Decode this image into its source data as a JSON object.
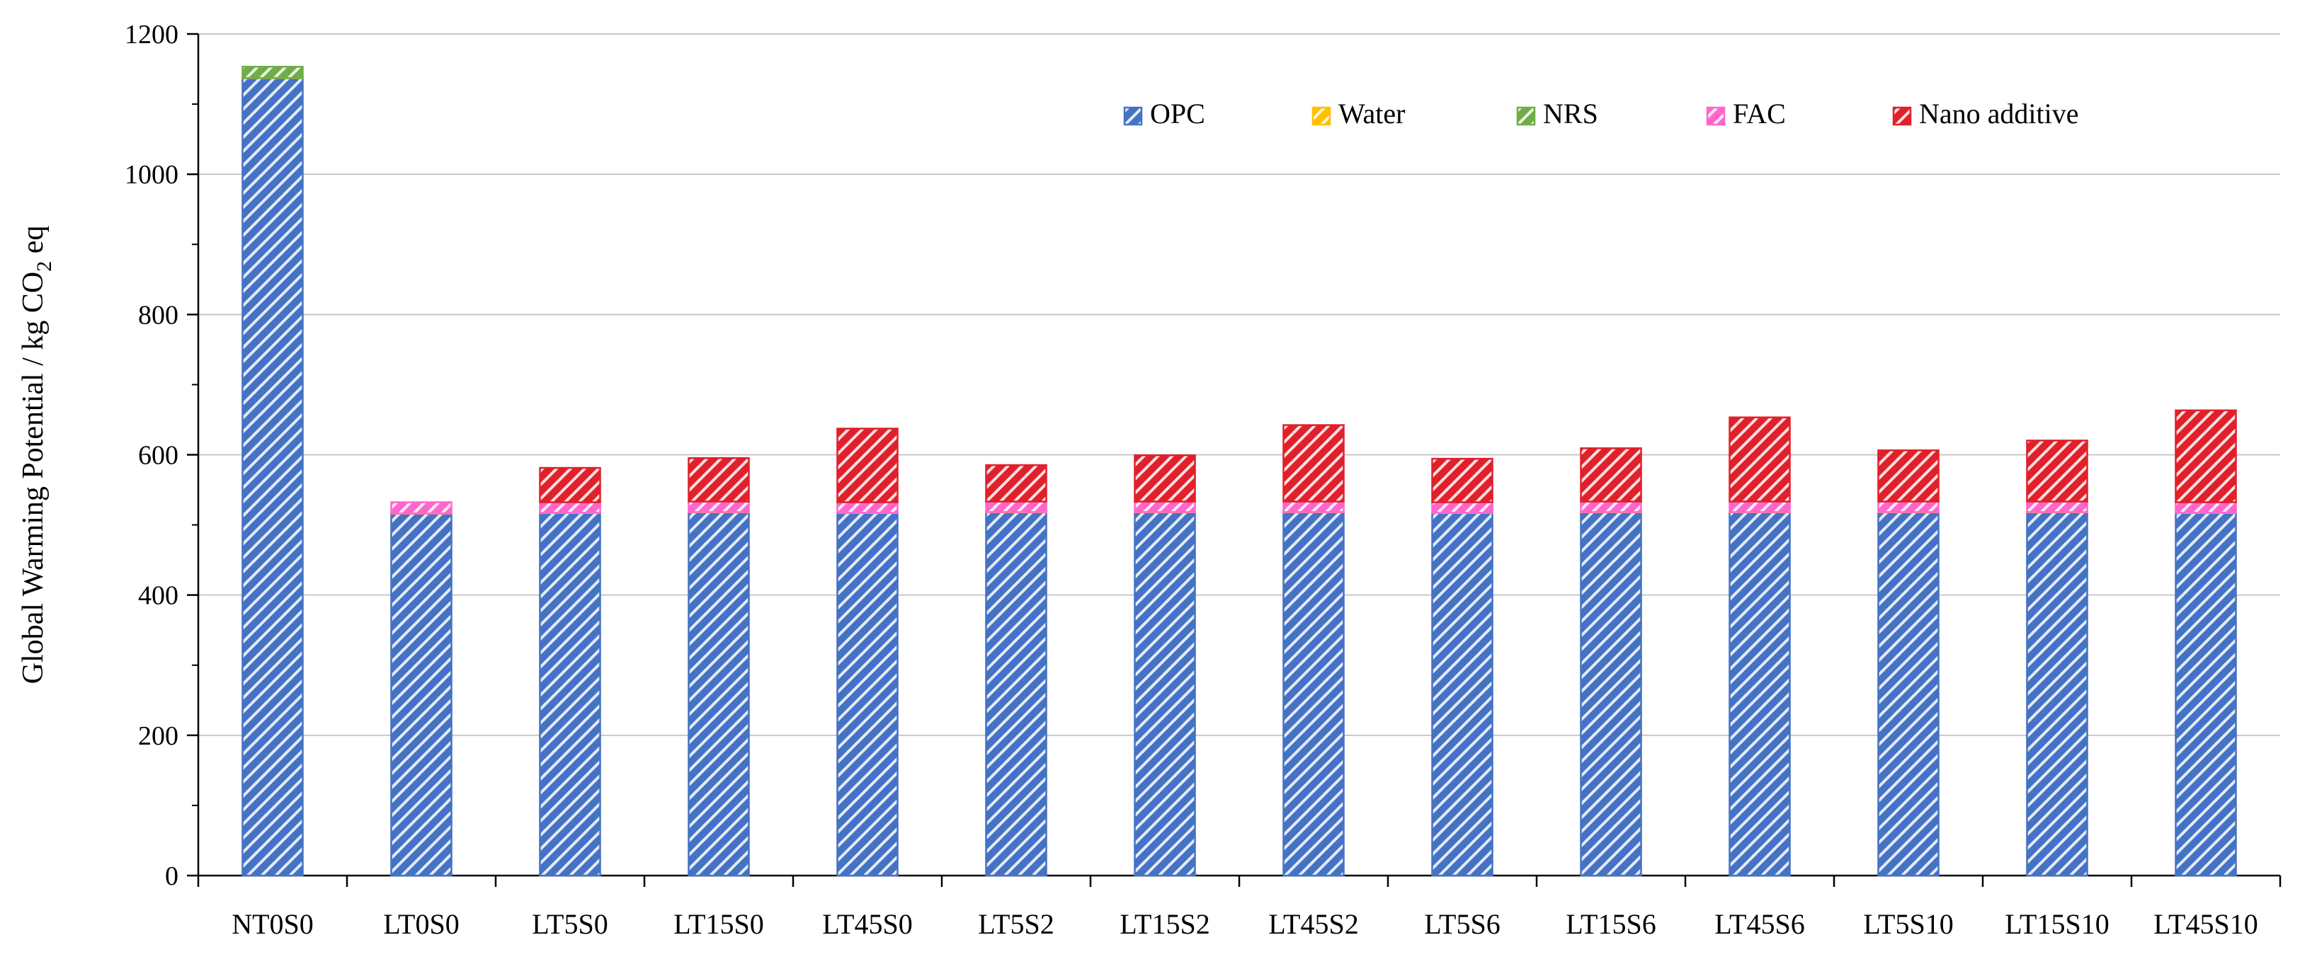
{
  "chart_data": {
    "type": "bar",
    "stacked": true,
    "ylabel": "Global Warming Potential / kg CO",
    "ylabel_subscript": "2",
    "ylabel_suffix": " eq",
    "xlabel": "",
    "ylim": [
      0,
      1200
    ],
    "yticks": [
      0,
      200,
      400,
      600,
      800,
      1000,
      1200
    ],
    "grid": true,
    "legend_position": "top-right",
    "categories": [
      "NT0S0",
      "LT0S0",
      "LT5S0",
      "LT15S0",
      "LT45S0",
      "LT5S2",
      "LT15S2",
      "LT45S2",
      "LT5S6",
      "LT15S6",
      "LT45S6",
      "LT5S10",
      "LT15S10",
      "LT45S10"
    ],
    "series": [
      {
        "name": "OPC",
        "color": "#4472C4",
        "values": [
          1137,
          516,
          517,
          518,
          517,
          518,
          518,
          518,
          517,
          518,
          518,
          518,
          518,
          517
        ]
      },
      {
        "name": "Water",
        "color": "#FFC000",
        "values": [
          0.3,
          0.3,
          0.3,
          0.3,
          0.3,
          0.3,
          0.3,
          0.3,
          0.3,
          0.3,
          0.3,
          0.3,
          0.3,
          0.3
        ]
      },
      {
        "name": "NRS",
        "color": "#70AD47",
        "values": [
          16,
          0,
          0,
          0,
          0,
          0,
          0,
          0,
          0,
          0,
          0,
          0,
          0,
          0
        ]
      },
      {
        "name": "FAC",
        "color": "#FF66CC",
        "values": [
          0,
          16,
          15,
          15,
          15,
          15,
          15,
          15,
          15,
          15,
          15,
          15,
          15,
          15
        ]
      },
      {
        "name": "Nano additive",
        "color": "#E0202A",
        "values": [
          0,
          0,
          49,
          62,
          105,
          52,
          66,
          109,
          62,
          76,
          120,
          73,
          87,
          131
        ]
      }
    ]
  }
}
